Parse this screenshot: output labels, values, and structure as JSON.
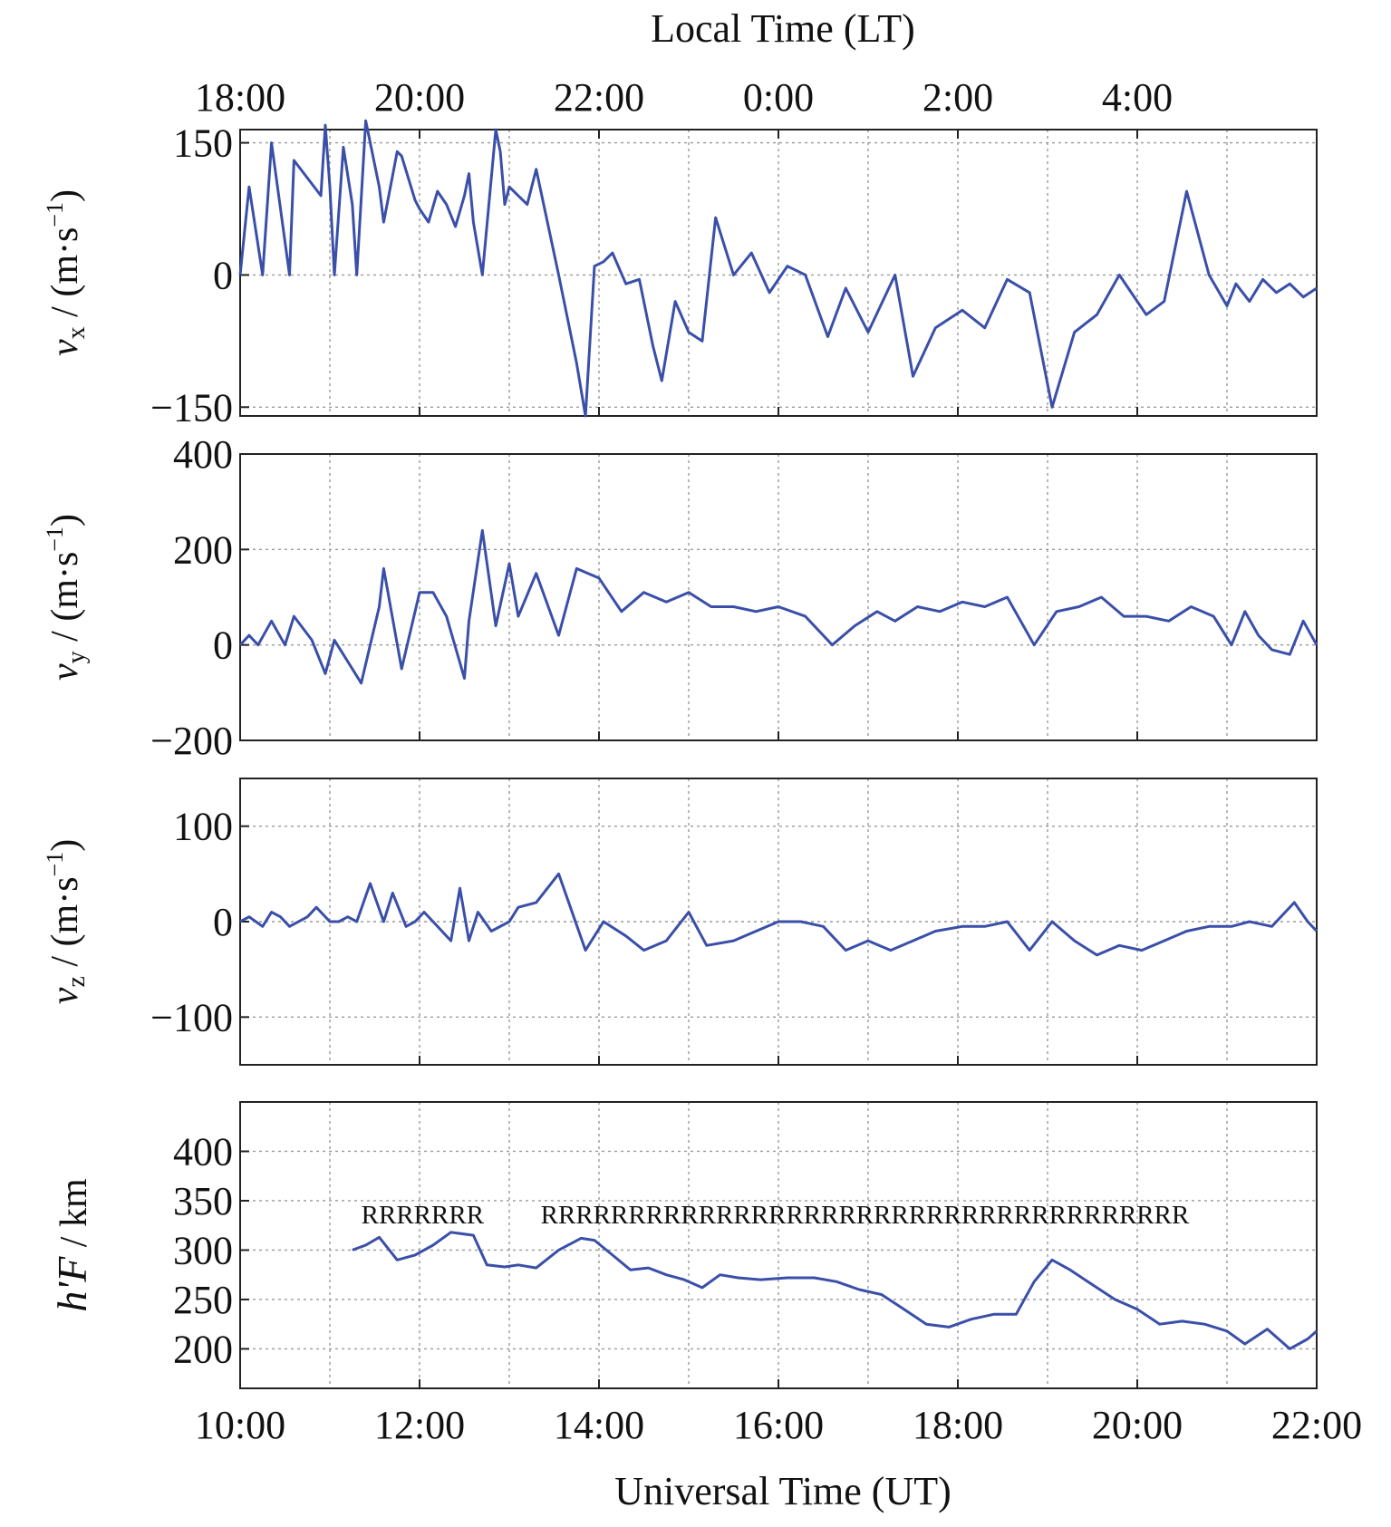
{
  "chart_data": {
    "type": "line",
    "xlabel": "Universal Time (UT)",
    "top_xlabel": "Local Time (LT)",
    "x_range_hours": [
      10,
      22
    ],
    "x_ticks": [
      "10:00",
      "12:00",
      "14:00",
      "16:00",
      "18:00",
      "20:00",
      "22:00"
    ],
    "top_x_ticks": [
      "18:00",
      "20:00",
      "22:00",
      "0:00",
      "2:00",
      "4:00"
    ],
    "grid": true,
    "panels": [
      {
        "ylabel_main": "v",
        "ylabel_sub": "x",
        "ylabel_units": " / (m·s",
        "ylabel_exp": "−1",
        "ylabel_close": ")",
        "ylim": [
          -160,
          165
        ],
        "y_ticks": [
          150,
          0,
          -150
        ],
        "y_tick_labels": [
          "150",
          "0",
          "−150"
        ],
        "x": [
          10.0,
          10.1,
          10.25,
          10.35,
          10.55,
          10.6,
          10.75,
          10.9,
          10.95,
          11.0,
          11.05,
          11.15,
          11.25,
          11.3,
          11.4,
          11.55,
          11.6,
          11.75,
          11.8,
          11.95,
          12.0,
          12.1,
          12.2,
          12.3,
          12.4,
          12.5,
          12.55,
          12.6,
          12.7,
          12.85,
          12.9,
          12.95,
          13.0,
          13.1,
          13.2,
          13.3,
          13.55,
          13.65,
          13.75,
          13.85,
          13.95,
          14.05,
          14.15,
          14.3,
          14.45,
          14.6,
          14.7,
          14.85,
          15.0,
          15.15,
          15.3,
          15.5,
          15.7,
          15.9,
          16.1,
          16.3,
          16.55,
          16.75,
          17.0,
          17.3,
          17.5,
          17.75,
          18.05,
          18.3,
          18.55,
          18.8,
          19.05,
          19.3,
          19.55,
          19.8,
          20.1,
          20.3,
          20.55,
          20.8,
          21.0,
          21.1,
          21.25,
          21.4,
          21.55,
          21.7,
          21.85,
          22.0
        ],
        "y": [
          0,
          100,
          0,
          150,
          0,
          130,
          110,
          90,
          170,
          100,
          0,
          145,
          80,
          0,
          175,
          100,
          60,
          140,
          135,
          85,
          75,
          60,
          95,
          80,
          55,
          90,
          115,
          60,
          0,
          165,
          140,
          80,
          100,
          90,
          80,
          120,
          0,
          -50,
          -100,
          -160,
          10,
          15,
          25,
          -10,
          -5,
          -80,
          -120,
          -30,
          -65,
          -75,
          65,
          0,
          25,
          -20,
          10,
          0,
          -70,
          -15,
          -65,
          0,
          -115,
          -60,
          -40,
          -60,
          -5,
          -20,
          -150,
          -65,
          -45,
          0,
          -45,
          -30,
          95,
          0,
          -35,
          -10,
          -30,
          -5,
          -20,
          -10,
          -25,
          -15
        ]
      },
      {
        "ylabel_main": "v",
        "ylabel_sub": "y",
        "ylabel_units": " / (m·s",
        "ylabel_exp": "−1",
        "ylabel_close": ")",
        "ylim": [
          -200,
          400
        ],
        "y_ticks": [
          400,
          200,
          0,
          -200
        ],
        "y_tick_labels": [
          "400",
          "200",
          "0",
          "−200"
        ],
        "x": [
          10.0,
          10.1,
          10.2,
          10.35,
          10.5,
          10.6,
          10.8,
          10.95,
          11.05,
          11.15,
          11.35,
          11.55,
          11.6,
          11.8,
          12.0,
          12.15,
          12.3,
          12.5,
          12.55,
          12.7,
          12.85,
          13.0,
          13.1,
          13.3,
          13.55,
          13.75,
          14.0,
          14.25,
          14.5,
          14.75,
          15.0,
          15.25,
          15.5,
          15.75,
          16.0,
          16.3,
          16.6,
          16.85,
          17.1,
          17.3,
          17.55,
          17.8,
          18.05,
          18.3,
          18.55,
          18.85,
          19.1,
          19.35,
          19.6,
          19.85,
          20.1,
          20.35,
          20.6,
          20.85,
          21.05,
          21.2,
          21.35,
          21.5,
          21.7,
          21.85,
          22.0
        ],
        "y": [
          0,
          20,
          0,
          50,
          0,
          60,
          10,
          -60,
          10,
          -20,
          -80,
          80,
          160,
          -50,
          110,
          110,
          60,
          -70,
          50,
          240,
          40,
          170,
          60,
          150,
          20,
          160,
          140,
          70,
          110,
          90,
          110,
          80,
          80,
          70,
          80,
          60,
          0,
          40,
          70,
          50,
          80,
          70,
          90,
          80,
          100,
          0,
          70,
          80,
          100,
          60,
          60,
          50,
          80,
          60,
          0,
          70,
          20,
          -10,
          -20,
          50,
          0
        ]
      },
      {
        "ylabel_main": "v",
        "ylabel_sub": "z",
        "ylabel_units": " / (m·s",
        "ylabel_exp": "−1",
        "ylabel_close": ")",
        "ylim": [
          -150,
          150
        ],
        "y_ticks": [
          100,
          0,
          -100
        ],
        "y_tick_labels": [
          "100",
          "0",
          "−100"
        ],
        "x": [
          10.0,
          10.1,
          10.25,
          10.35,
          10.45,
          10.55,
          10.75,
          10.85,
          11.0,
          11.1,
          11.2,
          11.3,
          11.45,
          11.6,
          11.7,
          11.85,
          11.95,
          12.05,
          12.15,
          12.35,
          12.45,
          12.55,
          12.65,
          12.8,
          13.0,
          13.1,
          13.3,
          13.55,
          13.85,
          14.05,
          14.3,
          14.5,
          14.75,
          15.0,
          15.2,
          15.5,
          15.75,
          16.0,
          16.25,
          16.5,
          16.75,
          17.0,
          17.25,
          17.5,
          17.75,
          18.05,
          18.3,
          18.55,
          18.8,
          19.05,
          19.3,
          19.55,
          19.8,
          20.05,
          20.3,
          20.55,
          20.8,
          21.05,
          21.25,
          21.5,
          21.75,
          21.9,
          22.0
        ],
        "y": [
          0,
          5,
          -5,
          10,
          5,
          -5,
          5,
          15,
          0,
          0,
          5,
          0,
          40,
          0,
          30,
          -5,
          0,
          10,
          0,
          -20,
          35,
          -20,
          10,
          -10,
          0,
          15,
          20,
          50,
          -30,
          0,
          -15,
          -30,
          -20,
          10,
          -25,
          -20,
          -10,
          0,
          0,
          -5,
          -30,
          -20,
          -30,
          -20,
          -10,
          -5,
          -5,
          0,
          -30,
          0,
          -20,
          -35,
          -25,
          -30,
          -20,
          -10,
          -5,
          -5,
          0,
          -5,
          20,
          0,
          -10
        ]
      },
      {
        "ylabel_main": "h'F",
        "ylabel_sub": "",
        "ylabel_units": " / km",
        "ylabel_exp": "",
        "ylabel_close": "",
        "ylim": [
          160,
          450
        ],
        "y_ticks": [
          400,
          350,
          300,
          250,
          200
        ],
        "y_tick_labels": [
          "400",
          "350",
          "300",
          "250",
          "200"
        ],
        "x": [
          11.25,
          11.4,
          11.55,
          11.75,
          11.95,
          12.15,
          12.35,
          12.6,
          12.75,
          12.95,
          13.1,
          13.3,
          13.55,
          13.8,
          13.95,
          14.15,
          14.35,
          14.55,
          14.75,
          14.95,
          15.15,
          15.35,
          15.55,
          15.8,
          16.1,
          16.4,
          16.65,
          16.9,
          17.15,
          17.4,
          17.65,
          17.9,
          18.15,
          18.4,
          18.65,
          18.85,
          19.05,
          19.25,
          19.5,
          19.75,
          20.0,
          20.25,
          20.5,
          20.75,
          21.0,
          21.2,
          21.45,
          21.7,
          21.9,
          22.0
        ],
        "y": [
          300,
          305,
          313,
          290,
          295,
          305,
          318,
          315,
          285,
          283,
          285,
          282,
          300,
          312,
          310,
          295,
          280,
          282,
          275,
          270,
          262,
          275,
          272,
          270,
          272,
          272,
          268,
          260,
          255,
          240,
          225,
          222,
          230,
          235,
          235,
          268,
          290,
          280,
          265,
          250,
          240,
          225,
          228,
          225,
          218,
          205,
          220,
          200,
          210,
          218
        ]
      }
    ],
    "annotations": [
      {
        "text": "RRRRRRR",
        "x": 11.35,
        "y": 327
      },
      {
        "text": "RRRRRRRRRRRRRRRRRRRRRRRRRRRRRRRRRRRRR",
        "x": 13.35,
        "y": 327
      }
    ]
  }
}
